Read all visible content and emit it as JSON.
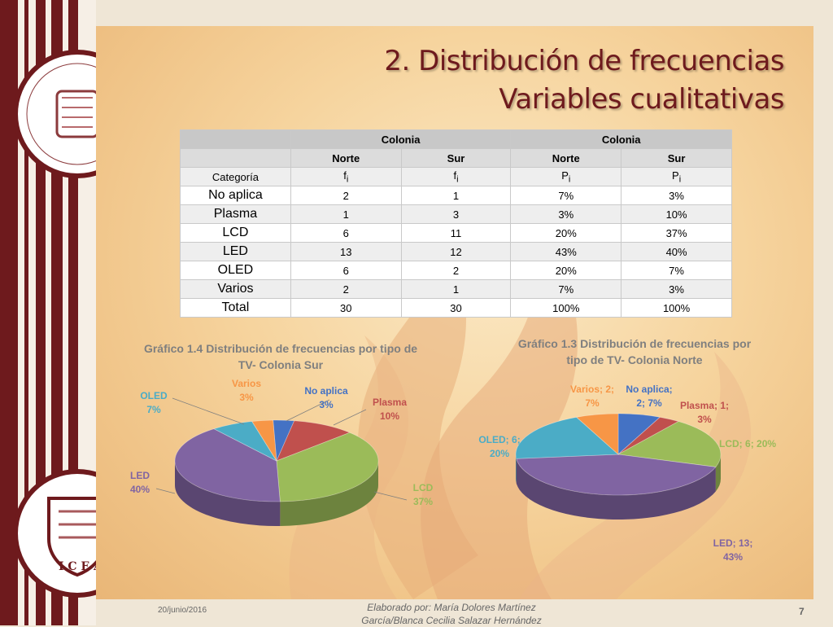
{
  "slide": {
    "title_line1": "2. Distribución de frecuencias",
    "title_line2": "Variables cualitativas",
    "footer_date": "20/junio/2016",
    "footer_author_line1": "Elaborado por: María Dolores Martínez",
    "footer_author_line2": "García/Blanca Cecilia Salazar Hernández",
    "page_number": "7"
  },
  "table": {
    "group_headers": [
      "Colonia",
      "Colonia"
    ],
    "sub_headers": [
      "Norte",
      "Sur",
      "Norte",
      "Sur"
    ],
    "measure_row": {
      "label": "Categoría",
      "cols": [
        "f",
        "f",
        "P",
        "P"
      ],
      "sub": "i"
    },
    "rows": [
      {
        "cat": "No aplica",
        "vals": [
          "2",
          "1",
          "7%",
          "3%"
        ]
      },
      {
        "cat": "Plasma",
        "vals": [
          "1",
          "3",
          "3%",
          "10%"
        ]
      },
      {
        "cat": "LCD",
        "vals": [
          "6",
          "11",
          "20%",
          "37%"
        ]
      },
      {
        "cat": "LED",
        "vals": [
          "13",
          "12",
          "43%",
          "40%"
        ]
      },
      {
        "cat": "OLED",
        "vals": [
          "6",
          "2",
          "20%",
          "7%"
        ]
      },
      {
        "cat": "Varios",
        "vals": [
          "2",
          "1",
          "7%",
          "3%"
        ]
      },
      {
        "cat": "Total",
        "vals": [
          "30",
          "30",
          "100%",
          "100%"
        ]
      }
    ]
  },
  "colors": {
    "No aplica": "#4472c4",
    "Plasma": "#c0504d",
    "LCD": "#9bbb59",
    "LED": "#8064a2",
    "OLED": "#4bacc6",
    "Varios": "#f79646",
    "title_maroon": "#6e1a1d"
  },
  "chart_data": [
    {
      "type": "pie",
      "title_line1": "Gráfico 1.4 Distribución de frecuencias por tipo de",
      "title_line2": "TV- Colonia Sur",
      "categories": [
        "No aplica",
        "Plasma",
        "LCD",
        "LED",
        "OLED",
        "Varios"
      ],
      "values": [
        1,
        3,
        11,
        12,
        2,
        1
      ],
      "percent_labels": [
        "3%",
        "10%",
        "37%",
        "40%",
        "7%",
        "3%"
      ],
      "label_format": "category + percent"
    },
    {
      "type": "pie",
      "title_line1": "Gráfico 1.3 Distribución de frecuencias por",
      "title_line2": "tipo de TV- Colonia Norte",
      "categories": [
        "No aplica",
        "Plasma",
        "LCD",
        "LED",
        "OLED",
        "Varios"
      ],
      "values": [
        2,
        1,
        6,
        13,
        6,
        2
      ],
      "percent_labels": [
        "7%",
        "3%",
        "20%",
        "43%",
        "20%",
        "7%"
      ],
      "label_format": "category; value; percent"
    }
  ]
}
